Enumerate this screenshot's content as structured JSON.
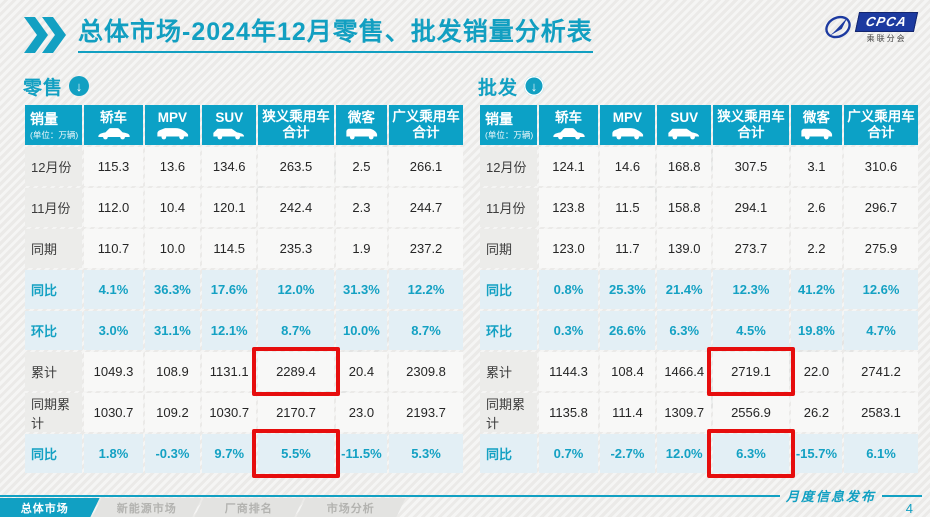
{
  "header": {
    "title": "总体市场-2024年12月零售、批发销量分析表",
    "chevron_icon": "double-chevron-icon"
  },
  "logo": {
    "name": "CPCA",
    "subtitle": "乘联分会",
    "icon": "cpca-swoosh-icon"
  },
  "colors": {
    "accent": "#12a0c2",
    "table_header_bg": "#0ca1c6",
    "percent_row_bg": "#e3eff5",
    "label_cell_bg": "#ececea",
    "data_cell_bg": "#f8f8f7",
    "highlight_red": "#e60d0d"
  },
  "tables": [
    {
      "id": "retail",
      "section_label": "零售",
      "section_icon": "down-arrow-circle-icon",
      "columns": [
        {
          "label": "销量",
          "sub": "(单位：万辆)"
        },
        {
          "label": "轿车",
          "icon": "sedan-icon"
        },
        {
          "label": "MPV",
          "icon": "mpv-icon"
        },
        {
          "label": "SUV",
          "icon": "suv-icon"
        },
        {
          "label": "狭义乘用车",
          "label2": "合计"
        },
        {
          "label": "微客",
          "icon": "minibus-icon"
        },
        {
          "label": "广义乘用车",
          "label2": "合计"
        }
      ],
      "rows": [
        {
          "label": "12月份",
          "type": "data",
          "values": [
            "115.3",
            "13.6",
            "134.6",
            "263.5",
            "2.5",
            "266.1"
          ]
        },
        {
          "label": "11月份",
          "type": "data",
          "values": [
            "112.0",
            "10.4",
            "120.1",
            "242.4",
            "2.3",
            "244.7"
          ]
        },
        {
          "label": "同期",
          "type": "data",
          "values": [
            "110.7",
            "10.0",
            "114.5",
            "235.3",
            "1.9",
            "237.2"
          ]
        },
        {
          "label": "同比",
          "type": "percent",
          "values": [
            "4.1%",
            "36.3%",
            "17.6%",
            "12.0%",
            "31.3%",
            "12.2%"
          ]
        },
        {
          "label": "环比",
          "type": "percent",
          "values": [
            "3.0%",
            "31.1%",
            "12.1%",
            "8.7%",
            "10.0%",
            "8.7%"
          ]
        },
        {
          "label": "累计",
          "type": "data",
          "values": [
            "1049.3",
            "108.9",
            "1131.1",
            "2289.4",
            "20.4",
            "2309.8"
          ]
        },
        {
          "label": "同期累计",
          "type": "data",
          "values": [
            "1030.7",
            "109.2",
            "1030.7",
            "2170.7",
            "23.0",
            "2193.7"
          ]
        },
        {
          "label": "同比",
          "type": "percent",
          "values": [
            "1.8%",
            "-0.3%",
            "9.7%",
            "5.5%",
            "-11.5%",
            "5.3%"
          ]
        }
      ],
      "highlights": [
        {
          "row": 5,
          "col": 3
        },
        {
          "row": 7,
          "col": 3
        }
      ]
    },
    {
      "id": "wholesale",
      "section_label": "批发",
      "section_icon": "down-arrow-circle-icon",
      "columns": [
        {
          "label": "销量",
          "sub": "(单位：万辆)"
        },
        {
          "label": "轿车",
          "icon": "sedan-icon"
        },
        {
          "label": "MPV",
          "icon": "mpv-icon"
        },
        {
          "label": "SUV",
          "icon": "suv-icon"
        },
        {
          "label": "狭义乘用车",
          "label2": "合计"
        },
        {
          "label": "微客",
          "icon": "minibus-icon"
        },
        {
          "label": "广义乘用车",
          "label2": "合计"
        }
      ],
      "rows": [
        {
          "label": "12月份",
          "type": "data",
          "values": [
            "124.1",
            "14.6",
            "168.8",
            "307.5",
            "3.1",
            "310.6"
          ]
        },
        {
          "label": "11月份",
          "type": "data",
          "values": [
            "123.8",
            "11.5",
            "158.8",
            "294.1",
            "2.6",
            "296.7"
          ]
        },
        {
          "label": "同期",
          "type": "data",
          "values": [
            "123.0",
            "11.7",
            "139.0",
            "273.7",
            "2.2",
            "275.9"
          ]
        },
        {
          "label": "同比",
          "type": "percent",
          "values": [
            "0.8%",
            "25.3%",
            "21.4%",
            "12.3%",
            "41.2%",
            "12.6%"
          ]
        },
        {
          "label": "环比",
          "type": "percent",
          "values": [
            "0.3%",
            "26.6%",
            "6.3%",
            "4.5%",
            "19.8%",
            "4.7%"
          ]
        },
        {
          "label": "累计",
          "type": "data",
          "values": [
            "1144.3",
            "108.4",
            "1466.4",
            "2719.1",
            "22.0",
            "2741.2"
          ]
        },
        {
          "label": "同期累计",
          "type": "data",
          "values": [
            "1135.8",
            "111.4",
            "1309.7",
            "2556.9",
            "26.2",
            "2583.1"
          ]
        },
        {
          "label": "同比",
          "type": "percent",
          "values": [
            "0.7%",
            "-2.7%",
            "12.0%",
            "6.3%",
            "-15.7%",
            "6.1%"
          ]
        }
      ],
      "highlights": [
        {
          "row": 5,
          "col": 3
        },
        {
          "row": 7,
          "col": 3
        }
      ]
    }
  ],
  "footer": {
    "tabs": [
      {
        "label": "总体市场",
        "active": true
      },
      {
        "label": "新能源市场",
        "active": false
      },
      {
        "label": "厂商排名",
        "active": false
      },
      {
        "label": "市场分析",
        "active": false
      }
    ],
    "right_text": "月度信息发布",
    "page_number": "4"
  },
  "watermark_text": "CPCA"
}
